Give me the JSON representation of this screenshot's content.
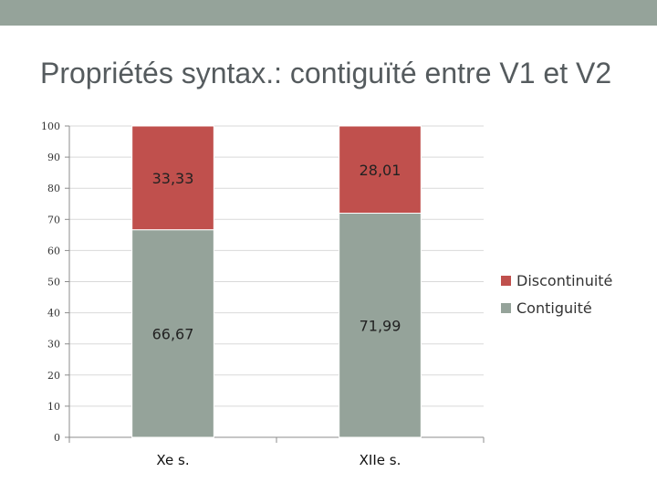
{
  "slide": {
    "title": "Propriétés syntax.: contiguïté entre V1 et V2"
  },
  "colors": {
    "topbar": "#95a39a",
    "Discontinuité": "#c0504d",
    "Contiguité": "#95a39a"
  },
  "chart_data": {
    "type": "bar",
    "stacked": true,
    "categories": [
      "Xe s.",
      "XIIe s."
    ],
    "series": [
      {
        "name": "Contiguité",
        "values": [
          66.67,
          71.99
        ],
        "labels": [
          "66,67",
          "71,99"
        ]
      },
      {
        "name": "Discontinuité",
        "values": [
          33.33,
          28.01
        ],
        "labels": [
          "33,33",
          "28,01"
        ]
      }
    ],
    "ylim": [
      0,
      100
    ],
    "yticks": [
      0,
      10,
      20,
      30,
      40,
      50,
      60,
      70,
      80,
      90,
      100
    ],
    "grid": true,
    "legend": "right",
    "xlabel": "",
    "ylabel": ""
  }
}
